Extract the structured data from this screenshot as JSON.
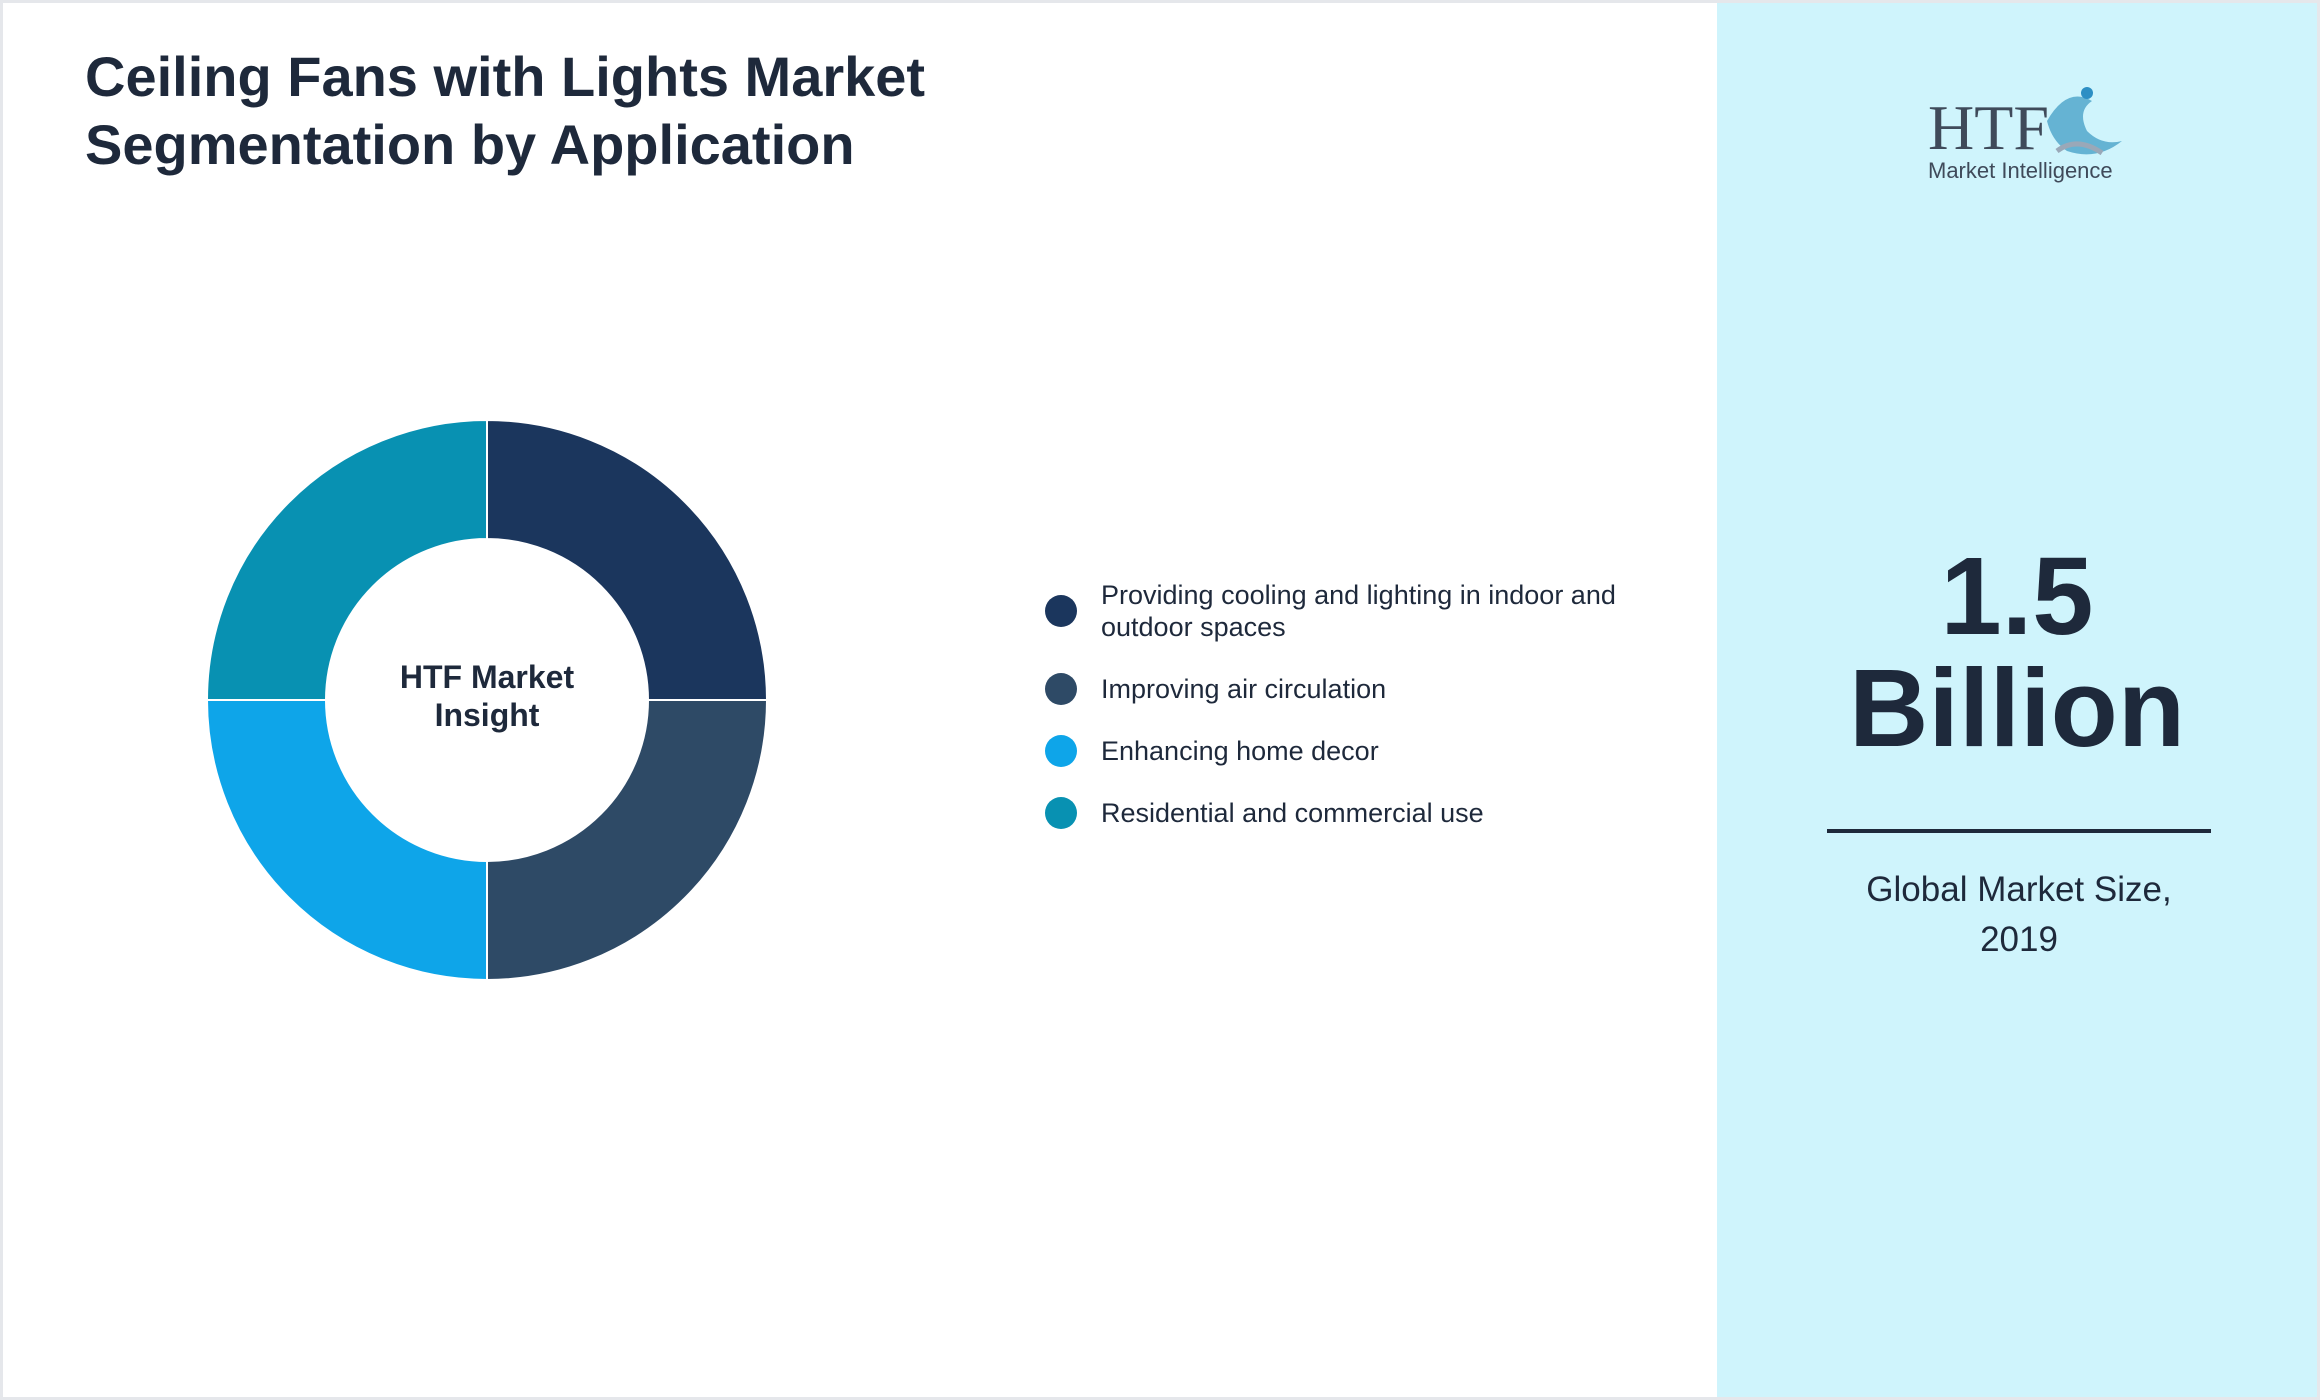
{
  "chart_data": {
    "type": "donut",
    "title": "Ceiling Fans with Lights Market Segmentation by Application",
    "center_label": "HTF Market Insight",
    "categories": [
      "Providing cooling and lighting in indoor and outdoor spaces",
      "Improving air circulation",
      "Enhancing home decor",
      "Residential and commercial use"
    ],
    "values": [
      25,
      25,
      25,
      25
    ],
    "colors": [
      "#1b365d",
      "#2e4a66",
      "#0ea5e9",
      "#0891b2"
    ]
  },
  "logo": {
    "name": "HTF",
    "tagline": "Market Intelligence"
  },
  "market_size": {
    "value": "1.5",
    "unit": "Billion",
    "label": "Global Market Size, 2019"
  }
}
